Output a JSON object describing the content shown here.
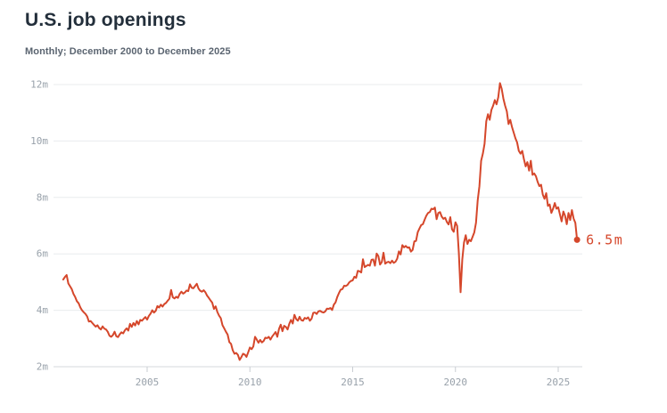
{
  "header": {
    "title": "U.S. job openings",
    "subtitle": "Monthly; December 2000 to December 2025"
  },
  "chart_data": {
    "type": "line",
    "title": "U.S. job openings",
    "subtitle": "Monthly; December 2000 to December 2025",
    "series_name": "U.S. job openings",
    "unit": "millions of job openings",
    "frequency": "monthly",
    "start": "2000-12",
    "end": "2025-12",
    "x_ticks": [
      "2005",
      "2010",
      "2015",
      "2020",
      "2025"
    ],
    "y_ticks": [
      "2m",
      "4m",
      "6m",
      "8m",
      "10m",
      "12m"
    ],
    "y_range_millions": [
      2,
      12
    ],
    "grid": true,
    "legend": "none",
    "line_color": "#D5472B",
    "end_label": "6.5m",
    "end_value_millions": 6.5,
    "values_millions": [
      5.09,
      5.18,
      5.25,
      4.95,
      4.85,
      4.75,
      4.58,
      4.47,
      4.32,
      4.25,
      4.1,
      4.0,
      3.93,
      3.87,
      3.78,
      3.6,
      3.62,
      3.55,
      3.48,
      3.42,
      3.47,
      3.37,
      3.32,
      3.43,
      3.35,
      3.32,
      3.24,
      3.1,
      3.06,
      3.12,
      3.24,
      3.08,
      3.05,
      3.15,
      3.22,
      3.18,
      3.29,
      3.36,
      3.28,
      3.52,
      3.41,
      3.55,
      3.46,
      3.62,
      3.5,
      3.66,
      3.63,
      3.7,
      3.76,
      3.67,
      3.8,
      3.88,
      4.0,
      3.92,
      3.98,
      4.15,
      4.1,
      4.2,
      4.13,
      4.22,
      4.26,
      4.34,
      4.41,
      4.72,
      4.46,
      4.42,
      4.48,
      4.44,
      4.58,
      4.66,
      4.59,
      4.63,
      4.7,
      4.68,
      4.92,
      4.8,
      4.78,
      4.86,
      4.94,
      4.77,
      4.69,
      4.66,
      4.71,
      4.64,
      4.52,
      4.44,
      4.35,
      4.27,
      4.05,
      4.14,
      3.94,
      3.81,
      3.72,
      3.47,
      3.36,
      3.24,
      3.14,
      2.87,
      2.81,
      2.58,
      2.46,
      2.49,
      2.42,
      2.24,
      2.34,
      2.46,
      2.43,
      2.35,
      2.51,
      2.68,
      2.62,
      2.72,
      3.06,
      2.96,
      2.85,
      2.95,
      2.86,
      2.91,
      3.03,
      3.01,
      3.06,
      2.96,
      3.07,
      3.15,
      3.23,
      3.06,
      3.34,
      3.49,
      3.26,
      3.45,
      3.41,
      3.32,
      3.52,
      3.66,
      3.53,
      3.84,
      3.69,
      3.63,
      3.77,
      3.65,
      3.63,
      3.73,
      3.7,
      3.75,
      3.63,
      3.7,
      3.91,
      3.92,
      3.87,
      3.96,
      3.98,
      3.94,
      3.92,
      3.96,
      4.06,
      4.05,
      4.08,
      4.01,
      4.2,
      4.28,
      4.47,
      4.61,
      4.73,
      4.75,
      4.87,
      4.86,
      4.9,
      4.99,
      5.04,
      5.06,
      5.19,
      5.15,
      5.4,
      5.38,
      5.34,
      5.81,
      5.53,
      5.57,
      5.61,
      5.58,
      5.79,
      5.8,
      5.58,
      6.01,
      5.92,
      5.62,
      5.71,
      6.04,
      5.65,
      5.7,
      5.72,
      5.67,
      5.76,
      5.68,
      5.72,
      5.83,
      6.09,
      5.98,
      6.31,
      6.23,
      6.28,
      6.22,
      6.23,
      6.08,
      6.14,
      6.44,
      6.46,
      6.77,
      6.9,
      7.02,
      7.05,
      7.21,
      7.35,
      7.45,
      7.48,
      7.6,
      7.58,
      7.64,
      7.23,
      7.45,
      7.48,
      7.32,
      7.24,
      7.28,
      7.13,
      7.04,
      7.3,
      6.87,
      6.78,
      7.12,
      6.99,
      6.02,
      4.64,
      5.8,
      6.4,
      6.66,
      6.35,
      6.5,
      6.45,
      6.6,
      6.76,
      7.1,
      7.9,
      8.4,
      9.3,
      9.55,
      9.9,
      10.7,
      10.95,
      10.75,
      11.1,
      11.25,
      11.45,
      11.3,
      11.55,
      12.05,
      11.85,
      11.5,
      11.25,
      11.05,
      10.6,
      10.75,
      10.5,
      10.3,
      10.1,
      9.95,
      9.65,
      9.55,
      9.65,
      9.35,
      9.1,
      9.25,
      8.95,
      9.3,
      8.8,
      8.85,
      8.75,
      8.55,
      8.4,
      8.45,
      8.1,
      7.95,
      8.15,
      7.7,
      7.75,
      7.45,
      7.6,
      7.8,
      7.6,
      7.65,
      7.4,
      7.15,
      7.5,
      7.35,
      7.05,
      7.45,
      7.2,
      7.55,
      7.25,
      7.1,
      6.5
    ]
  },
  "colors": {
    "background": "#FFFFFF",
    "title": "#232F3B",
    "subtitle": "#5A6470",
    "axis_text": "#98A1AA",
    "gridline": "#E9EBEE",
    "baseline": "#D5D9DD",
    "tick": "#C9CDD2",
    "line": "#D5472B"
  }
}
